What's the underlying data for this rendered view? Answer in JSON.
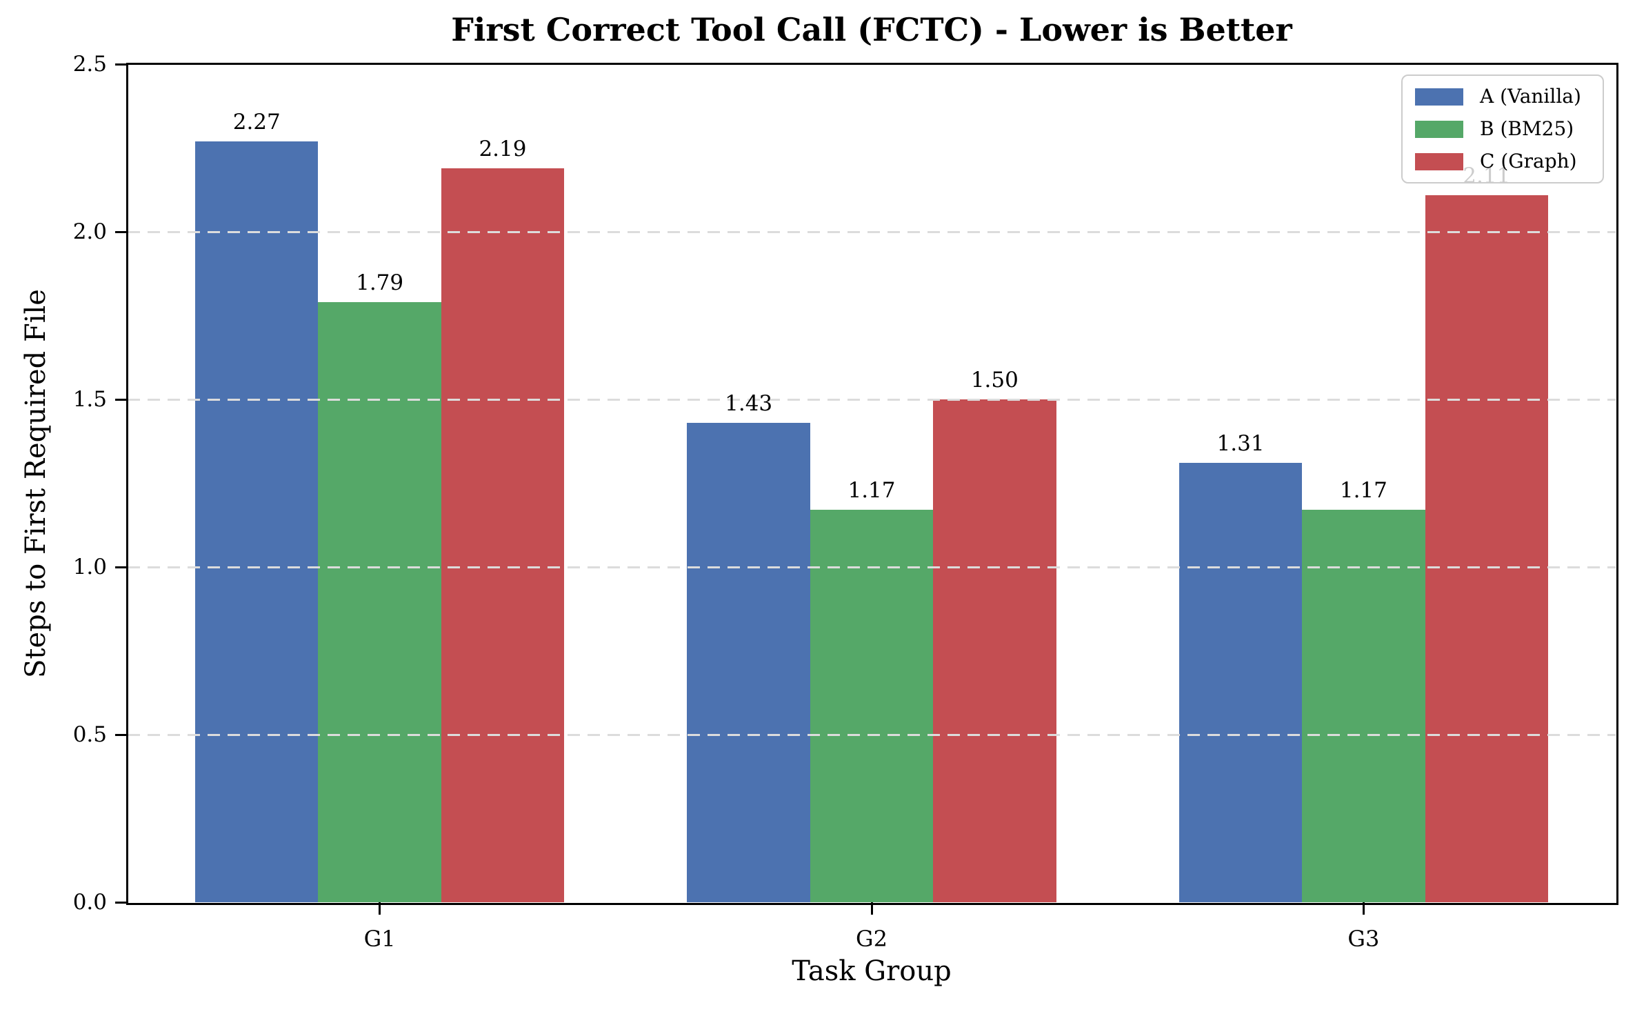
{
  "chart_data": {
    "type": "bar",
    "title": "First Correct Tool Call (FCTC) - Lower is Better",
    "xlabel": "Task Group",
    "ylabel": "Steps to First Required File",
    "categories": [
      "G1",
      "G2",
      "G3"
    ],
    "series": [
      {
        "name": "A (Vanilla)",
        "color": "#4C72B0",
        "values": [
          2.27,
          1.43,
          1.31
        ]
      },
      {
        "name": "B (BM25)",
        "color": "#55A868",
        "values": [
          1.79,
          1.17,
          1.17
        ]
      },
      {
        "name": "C (Graph)",
        "color": "#C44E52",
        "values": [
          2.19,
          1.5,
          2.11
        ]
      }
    ],
    "bar_labels": [
      [
        "2.27",
        "1.43",
        "1.31"
      ],
      [
        "1.79",
        "1.17",
        "1.17"
      ],
      [
        "2.19",
        "1.50",
        "2.11"
      ]
    ],
    "ylim": [
      0,
      2.5
    ],
    "yticks": [
      "0.0",
      "0.5",
      "1.0",
      "1.5",
      "2.0",
      "2.5"
    ],
    "grid": true,
    "grid_style": "dashed",
    "grid_color": "#dcdcdc",
    "spine_color": "#000000",
    "legend_position": "upper right",
    "legend_border_color": "#cccccc",
    "background_color": "#ffffff",
    "bar_width_units": 0.25
  }
}
